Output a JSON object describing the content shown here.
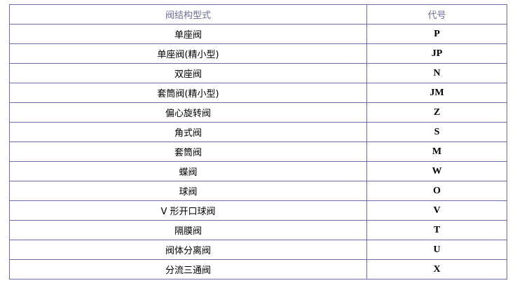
{
  "table": {
    "headers": [
      "阀结构型式",
      "代号"
    ],
    "rows": [
      {
        "name": "单座阀",
        "code": "P"
      },
      {
        "name": "单座阀(精小型)",
        "code": "JP"
      },
      {
        "name": "双座阀",
        "code": "N"
      },
      {
        "name": "套筒阀(精小型)",
        "code": "JM"
      },
      {
        "name": "偏心旋转阀",
        "code": "Z"
      },
      {
        "name": "角式阀",
        "code": "S"
      },
      {
        "name": "套筒阀",
        "code": "M"
      },
      {
        "name": "蝶阀",
        "code": "W"
      },
      {
        "name": "球阀",
        "code": "O"
      },
      {
        "name": "V 形开口球阀",
        "code": "V"
      },
      {
        "name": "隔膜阀",
        "code": "T"
      },
      {
        "name": "阀体分离阀",
        "code": "U"
      },
      {
        "name": "分流三通阀",
        "code": "X"
      }
    ]
  },
  "colors": {
    "border": "#6b6ba6",
    "header_text": "#6b6ba0"
  }
}
